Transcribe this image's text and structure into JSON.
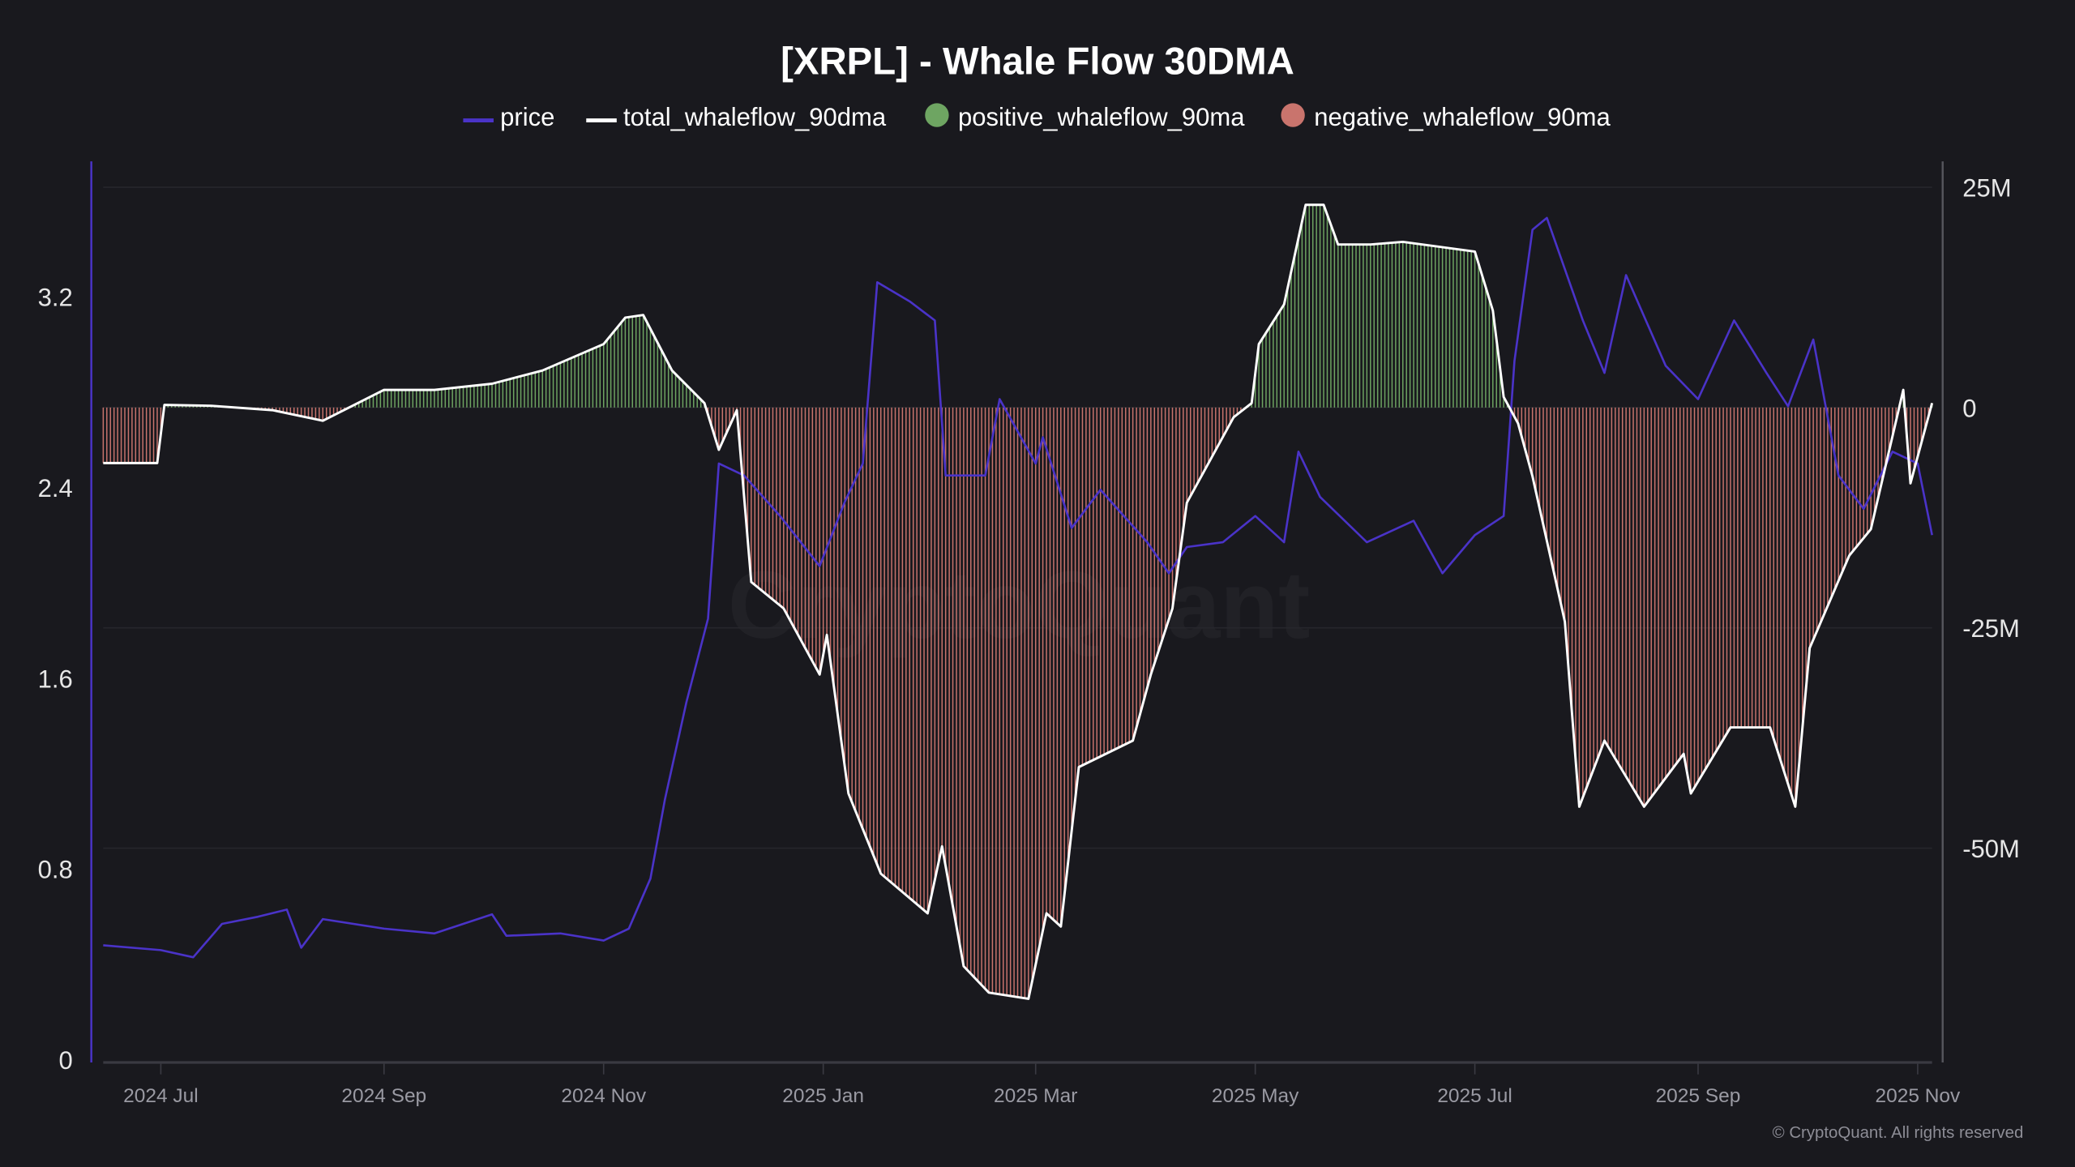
{
  "chart_data": {
    "type": "line",
    "title": "[XRPL] - Whale Flow 30DMA",
    "watermark": "CryptoQuant",
    "copyright": "© CryptoQuant. All rights reserved",
    "legend": [
      "price",
      "total_whaleflow_90dma",
      "positive_whaleflow_90ma",
      "negative_whaleflow_90ma"
    ],
    "legend_placement": "top",
    "colors": {
      "price": "#4a33c8",
      "total": "#ffffff",
      "positive": "#6ea562",
      "negative": "#c9746d",
      "background": "#19191e",
      "grid": "#26262c"
    },
    "grid": true,
    "x_range": [
      "2024-06-15",
      "2025-11-05"
    ],
    "x_ticks": [
      {
        "date": "2024-07-01",
        "label": "2024 Jul"
      },
      {
        "date": "2024-09-01",
        "label": "2024 Sep"
      },
      {
        "date": "2024-11-01",
        "label": "2024 Nov"
      },
      {
        "date": "2025-01-01",
        "label": "2025 Jan"
      },
      {
        "date": "2025-03-01",
        "label": "2025 Mar"
      },
      {
        "date": "2025-05-01",
        "label": "2025 May"
      },
      {
        "date": "2025-07-01",
        "label": "2025 Jul"
      },
      {
        "date": "2025-09-01",
        "label": "2025 Sep"
      },
      {
        "date": "2025-11-01",
        "label": "2025 Nov"
      }
    ],
    "y_left": {
      "range": [
        0,
        3.75
      ],
      "ticks": [
        0,
        0.8,
        1.6,
        2.4,
        3.2
      ],
      "labels": [
        "0",
        "0.8",
        "1.6",
        "2.4",
        "3.2"
      ]
    },
    "y_right": {
      "range": [
        -74,
        28
      ],
      "unit": "M",
      "ticks": [
        25,
        0,
        -25,
        -50
      ],
      "labels": [
        "25M",
        "0",
        "-25M",
        "-50M"
      ]
    },
    "series": [
      {
        "name": "price",
        "axis": "left",
        "points": [
          [
            "2024-06-15",
            0.48
          ],
          [
            "2024-07-01",
            0.46
          ],
          [
            "2024-07-10",
            0.43
          ],
          [
            "2024-07-18",
            0.57
          ],
          [
            "2024-07-28",
            0.6
          ],
          [
            "2024-08-05",
            0.63
          ],
          [
            "2024-08-09",
            0.47
          ],
          [
            "2024-08-15",
            0.59
          ],
          [
            "2024-09-01",
            0.55
          ],
          [
            "2024-09-15",
            0.53
          ],
          [
            "2024-10-01",
            0.61
          ],
          [
            "2024-10-05",
            0.52
          ],
          [
            "2024-10-20",
            0.53
          ],
          [
            "2024-11-01",
            0.5
          ],
          [
            "2024-11-08",
            0.55
          ],
          [
            "2024-11-14",
            0.76
          ],
          [
            "2024-11-18",
            1.09
          ],
          [
            "2024-11-24",
            1.5
          ],
          [
            "2024-11-30",
            1.85
          ],
          [
            "2024-12-03",
            2.5
          ],
          [
            "2024-12-10",
            2.45
          ],
          [
            "2024-12-20",
            2.28
          ],
          [
            "2024-12-31",
            2.07
          ],
          [
            "2025-01-07",
            2.34
          ],
          [
            "2025-01-12",
            2.5
          ],
          [
            "2025-01-16",
            3.26
          ],
          [
            "2025-01-25",
            3.18
          ],
          [
            "2025-02-01",
            3.1
          ],
          [
            "2025-02-04",
            2.45
          ],
          [
            "2025-02-15",
            2.45
          ],
          [
            "2025-02-19",
            2.77
          ],
          [
            "2025-03-01",
            2.5
          ],
          [
            "2025-03-03",
            2.61
          ],
          [
            "2025-03-11",
            2.23
          ],
          [
            "2025-03-19",
            2.39
          ],
          [
            "2025-04-01",
            2.17
          ],
          [
            "2025-04-07",
            2.04
          ],
          [
            "2025-04-12",
            2.15
          ],
          [
            "2025-04-22",
            2.17
          ],
          [
            "2025-05-01",
            2.28
          ],
          [
            "2025-05-09",
            2.17
          ],
          [
            "2025-05-13",
            2.55
          ],
          [
            "2025-05-19",
            2.36
          ],
          [
            "2025-06-01",
            2.17
          ],
          [
            "2025-06-14",
            2.26
          ],
          [
            "2025-06-22",
            2.04
          ],
          [
            "2025-07-01",
            2.2
          ],
          [
            "2025-07-09",
            2.28
          ],
          [
            "2025-07-12",
            2.93
          ],
          [
            "2025-07-17",
            3.48
          ],
          [
            "2025-07-21",
            3.53
          ],
          [
            "2025-07-31",
            3.1
          ],
          [
            "2025-08-06",
            2.88
          ],
          [
            "2025-08-12",
            3.29
          ],
          [
            "2025-08-23",
            2.91
          ],
          [
            "2025-09-01",
            2.77
          ],
          [
            "2025-09-11",
            3.1
          ],
          [
            "2025-09-20",
            2.88
          ],
          [
            "2025-09-26",
            2.74
          ],
          [
            "2025-10-03",
            3.02
          ],
          [
            "2025-10-10",
            2.45
          ],
          [
            "2025-10-17",
            2.31
          ],
          [
            "2025-10-25",
            2.55
          ],
          [
            "2025-11-01",
            2.5
          ],
          [
            "2025-11-05",
            2.2
          ]
        ]
      },
      {
        "name": "total_whaleflow_90dma",
        "axis": "right",
        "unit": "M",
        "points": [
          [
            "2024-06-15",
            -6.3
          ],
          [
            "2024-06-30",
            -6.3
          ],
          [
            "2024-07-02",
            0.3
          ],
          [
            "2024-07-15",
            0.2
          ],
          [
            "2024-08-01",
            -0.3
          ],
          [
            "2024-08-15",
            -1.5
          ],
          [
            "2024-09-01",
            2.0
          ],
          [
            "2024-09-15",
            2.0
          ],
          [
            "2024-10-01",
            2.7
          ],
          [
            "2024-10-15",
            4.2
          ],
          [
            "2024-11-01",
            7.2
          ],
          [
            "2024-11-07",
            10.2
          ],
          [
            "2024-11-12",
            10.5
          ],
          [
            "2024-11-20",
            4.2
          ],
          [
            "2024-11-29",
            0.5
          ],
          [
            "2024-12-03",
            -4.8
          ],
          [
            "2024-12-08",
            -0.3
          ],
          [
            "2024-12-12",
            -19.8
          ],
          [
            "2024-12-21",
            -22.8
          ],
          [
            "2024-12-31",
            -30.3
          ],
          [
            "2025-01-02",
            -25.8
          ],
          [
            "2025-01-08",
            -43.8
          ],
          [
            "2025-01-17",
            -52.9
          ],
          [
            "2025-01-30",
            -57.4
          ],
          [
            "2025-02-03",
            -49.8
          ],
          [
            "2025-02-09",
            -63.4
          ],
          [
            "2025-02-16",
            -66.4
          ],
          [
            "2025-02-27",
            -67.1
          ],
          [
            "2025-03-04",
            -57.4
          ],
          [
            "2025-03-08",
            -58.9
          ],
          [
            "2025-03-13",
            -40.8
          ],
          [
            "2025-03-28",
            -37.8
          ],
          [
            "2025-04-02",
            -30.3
          ],
          [
            "2025-04-08",
            -22.8
          ],
          [
            "2025-04-12",
            -10.8
          ],
          [
            "2025-04-25",
            -1.1
          ],
          [
            "2025-04-30",
            0.5
          ],
          [
            "2025-05-02",
            7.2
          ],
          [
            "2025-05-09",
            11.7
          ],
          [
            "2025-05-15",
            23.0
          ],
          [
            "2025-05-20",
            23.0
          ],
          [
            "2025-05-24",
            18.5
          ],
          [
            "2025-06-02",
            18.5
          ],
          [
            "2025-06-11",
            18.8
          ],
          [
            "2025-07-01",
            17.7
          ],
          [
            "2025-07-06",
            11.0
          ],
          [
            "2025-07-09",
            1.2
          ],
          [
            "2025-07-13",
            -1.8
          ],
          [
            "2025-07-17",
            -7.8
          ],
          [
            "2025-07-26",
            -24.3
          ],
          [
            "2025-07-30",
            -45.3
          ],
          [
            "2025-08-06",
            -37.8
          ],
          [
            "2025-08-17",
            -45.3
          ],
          [
            "2025-08-28",
            -39.3
          ],
          [
            "2025-08-30",
            -43.8
          ],
          [
            "2025-09-10",
            -36.3
          ],
          [
            "2025-09-21",
            -36.3
          ],
          [
            "2025-09-28",
            -45.3
          ],
          [
            "2025-10-02",
            -27.3
          ],
          [
            "2025-10-13",
            -16.8
          ],
          [
            "2025-10-19",
            -13.8
          ],
          [
            "2025-10-28",
            2.0
          ],
          [
            "2025-10-30",
            -8.6
          ],
          [
            "2025-11-05",
            0.5
          ]
        ]
      }
    ]
  }
}
